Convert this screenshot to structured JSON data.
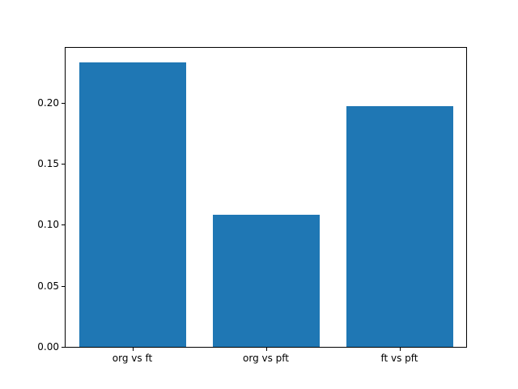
{
  "figure": {
    "background_color": "#ffffff",
    "plot_background_color": "#ffffff",
    "axis_color": "#000000",
    "text_color": "#000000"
  },
  "chart_data": {
    "type": "bar",
    "categories": [
      "org vs ft",
      "org vs pft",
      "ft vs pft"
    ],
    "values": [
      0.233,
      0.108,
      0.197
    ],
    "title": "",
    "xlabel": "",
    "ylabel": "",
    "ylim": [
      0,
      0.245
    ],
    "yticks": [
      0.0,
      0.05,
      0.1,
      0.15,
      0.2
    ],
    "ytick_labels": [
      "0.00",
      "0.05",
      "0.10",
      "0.15",
      "0.20"
    ],
    "bar_color": "#1f77b4",
    "bar_width_fraction": 0.8,
    "grid": false,
    "legend": null
  }
}
